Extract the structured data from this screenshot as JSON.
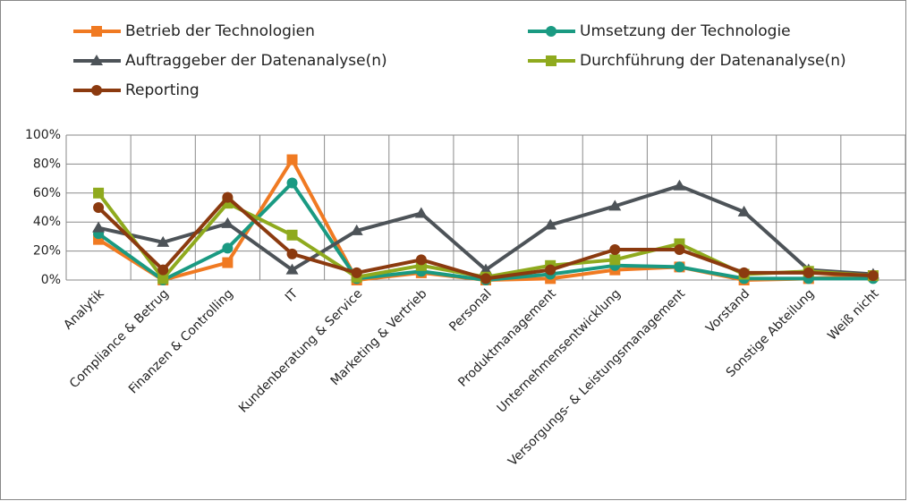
{
  "chart_data": {
    "type": "line",
    "categories": [
      "Analytik",
      "Compliance & Betrug",
      "Finanzen & Controlling",
      "IT",
      "Kundenberatung & Service",
      "Marketing & Vertrieb",
      "Personal",
      "Produktmanagement",
      "Unternehmensentwicklung",
      "Versorgungs- & Leistungsmanagement",
      "Vorstand",
      "Sonstige Abteilung",
      "Weiß nicht"
    ],
    "series": [
      {
        "name": "Betrieb der Technologien",
        "color": "#f07a22",
        "marker": "square",
        "values": [
          28,
          0,
          12,
          83,
          0,
          5,
          0,
          1,
          7,
          9,
          0,
          1,
          3
        ]
      },
      {
        "name": "Umsetzung der Technologie",
        "color": "#1a9a82",
        "marker": "circle",
        "values": [
          32,
          0,
          22,
          67,
          1,
          6,
          0,
          4,
          10,
          9,
          1,
          1,
          1
        ]
      },
      {
        "name": "Auftraggeber der Datenanalyse(n)",
        "color": "#4d5358",
        "marker": "triangle",
        "values": [
          36,
          26,
          39,
          7,
          34,
          46,
          7,
          38,
          51,
          65,
          47,
          7,
          4
        ]
      },
      {
        "name": "Durchführung der Datenanalyse(n)",
        "color": "#8faa1e",
        "marker": "square",
        "values": [
          60,
          1,
          53,
          31,
          2,
          10,
          2,
          10,
          14,
          25,
          4,
          6,
          3
        ]
      },
      {
        "name": "Reporting",
        "color": "#8b3a0f",
        "marker": "circle",
        "values": [
          50,
          7,
          57,
          18,
          5,
          14,
          1,
          7,
          21,
          21,
          5,
          5,
          3
        ]
      }
    ],
    "ylim": [
      0,
      100
    ],
    "yticks": [
      {
        "value": 0,
        "label": "0%"
      },
      {
        "value": 20,
        "label": "20%"
      },
      {
        "value": 40,
        "label": "40%"
      },
      {
        "value": 60,
        "label": "60%"
      },
      {
        "value": 80,
        "label": "80%"
      },
      {
        "value": 100,
        "label": "100%"
      }
    ],
    "grid": true
  }
}
